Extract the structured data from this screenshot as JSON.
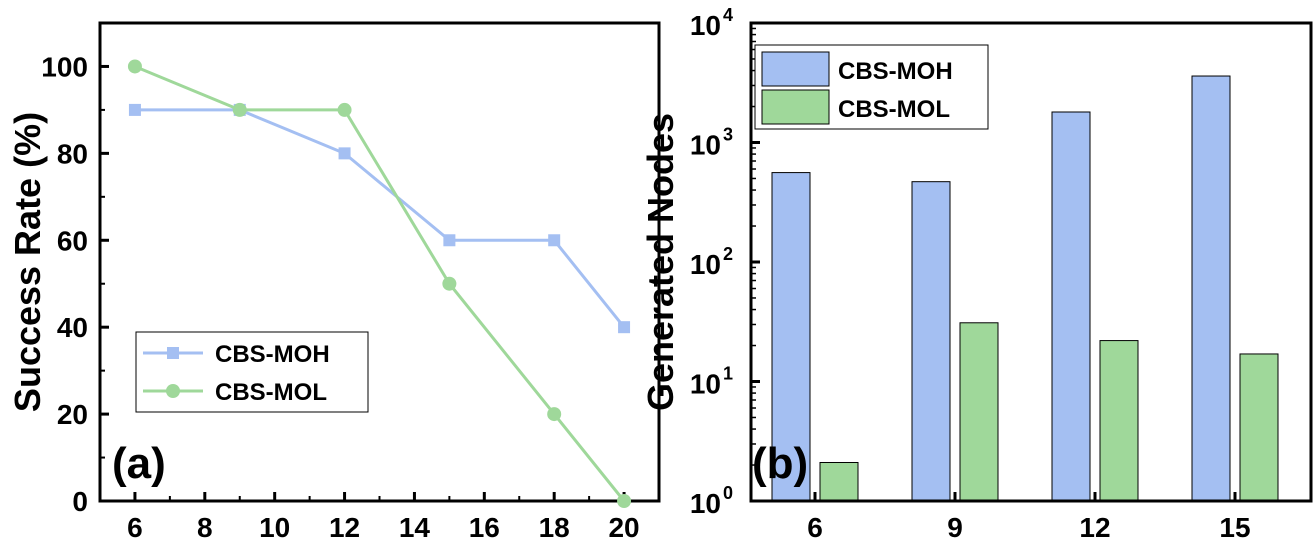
{
  "chart_data": [
    {
      "type": "line",
      "panel_label": "(a)",
      "xlabel": "",
      "ylabel": "Success Rate (%)",
      "xlim": [
        5,
        21
      ],
      "ylim": [
        0,
        110
      ],
      "xticks": [
        6,
        8,
        10,
        12,
        14,
        16,
        18,
        20
      ],
      "yticks": [
        0,
        20,
        40,
        60,
        80,
        100
      ],
      "legend_position": "bottom-left",
      "series": [
        {
          "name": "CBS-MOH",
          "color": "#a4bff2",
          "marker": "square",
          "x": [
            6,
            9,
            12,
            15,
            18,
            20
          ],
          "y": [
            90,
            90,
            80,
            60,
            60,
            40
          ]
        },
        {
          "name": "CBS-MOL",
          "color": "#9fd89a",
          "marker": "circle",
          "x": [
            6,
            9,
            12,
            15,
            18,
            20
          ],
          "y": [
            100,
            90,
            90,
            50,
            20,
            0
          ]
        }
      ]
    },
    {
      "type": "bar",
      "panel_label": "(b)",
      "xlabel": "",
      "ylabel": "Generated Nodes",
      "yscale": "log",
      "ylim": [
        1,
        10000
      ],
      "categories": [
        "6",
        "9",
        "12",
        "15"
      ],
      "legend_position": "top-left",
      "series": [
        {
          "name": "CBS-MOH",
          "color": "#a4bff2",
          "values": [
            560,
            470,
            1800,
            3600
          ]
        },
        {
          "name": "CBS-MOL",
          "color": "#9fd89a",
          "values": [
            2.1,
            31,
            22,
            17
          ]
        }
      ]
    }
  ]
}
